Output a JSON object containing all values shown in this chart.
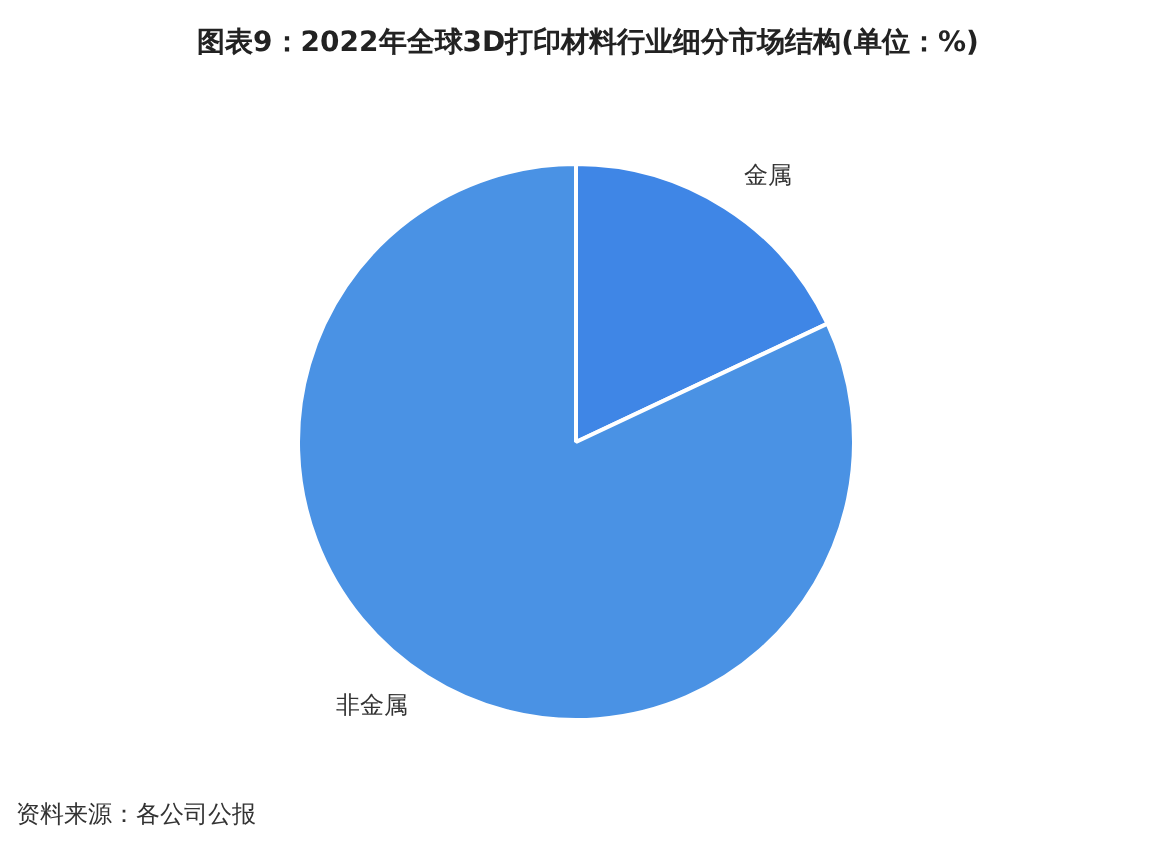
{
  "chart_data": {
    "type": "pie",
    "title": "图表9：2022年全球3D打印材料行业细分市场结构(单位：%)",
    "categories": [
      "金属",
      "非金属"
    ],
    "values": [
      18,
      82
    ],
    "colors": [
      "#3f86e6",
      "#4a92e4"
    ],
    "legend": false,
    "annotations": [
      "资料来源：各公司公报"
    ]
  }
}
